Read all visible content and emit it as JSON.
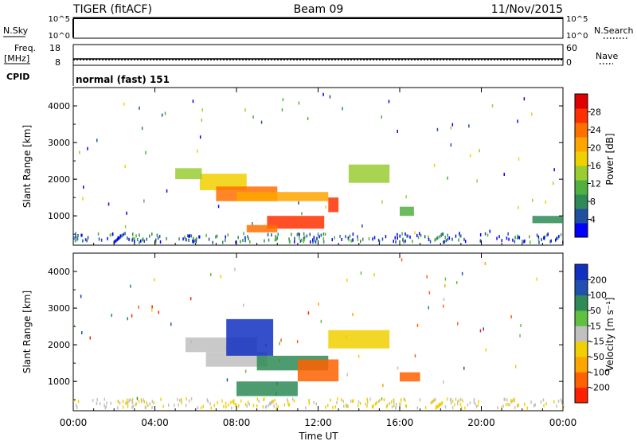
{
  "header": {
    "station": "TIGER (fitACF)",
    "beam": "Beam 09",
    "date": "11/Nov/2015"
  },
  "top_panels": {
    "nsky_label": "N.Sky",
    "nsky_ticks": [
      "10^5",
      "10^0"
    ],
    "nsearch_label": "N.Search",
    "nsearch_ticks": [
      "10^5",
      "10^0"
    ],
    "freq_label_1": "Freq.",
    "freq_label_2": "[MHz]",
    "freq_ticks": [
      "18",
      "8"
    ],
    "nave_label": "Nave",
    "nave_ticks": [
      "60",
      "0"
    ],
    "cpid_label": "CPID",
    "cpid_value": "normal (fast) 151"
  },
  "colors": {
    "power_scale": [
      "#0000ff",
      "#1f4fa0",
      "#2e8b57",
      "#50b040",
      "#9acd32",
      "#f0d000",
      "#ffa500",
      "#ff7000",
      "#ff3000",
      "#e00000"
    ],
    "velocity_scale": [
      "#1030c0",
      "#2050b0",
      "#2e8b57",
      "#60c040",
      "#c0c0c0",
      "#f0d000",
      "#ffa500",
      "#ff6000",
      "#ff2000"
    ]
  },
  "chart_data": [
    {
      "type": "heatmap",
      "name": "power",
      "ylabel": "Slant Range [km]",
      "ylim": [
        200,
        4500
      ],
      "xlim": [
        0,
        24
      ],
      "y_ticks": [
        "1000",
        "2000",
        "3000",
        "4000"
      ],
      "colorbar_label": "Power [dB]",
      "colorbar_ticks": [
        "4",
        "8",
        "12",
        "16",
        "20",
        "24",
        "28"
      ],
      "cells": [
        {
          "t0": 6.2,
          "t1": 8.5,
          "r0": 1700,
          "r1": 2150,
          "v": 16
        },
        {
          "t0": 7.0,
          "t1": 10.0,
          "r0": 1400,
          "r1": 1800,
          "v": 24
        },
        {
          "t0": 8.0,
          "t1": 12.5,
          "r0": 1400,
          "r1": 1650,
          "v": 22
        },
        {
          "t0": 9.5,
          "t1": 12.3,
          "r0": 650,
          "r1": 1000,
          "v": 28
        },
        {
          "t0": 8.5,
          "t1": 10.0,
          "r0": 550,
          "r1": 750,
          "v": 24
        },
        {
          "t0": 12.5,
          "t1": 13.0,
          "r0": 1100,
          "r1": 1500,
          "v": 26
        },
        {
          "t0": 13.5,
          "t1": 15.5,
          "r0": 1900,
          "r1": 2400,
          "v": 14
        },
        {
          "t0": 5.0,
          "t1": 6.3,
          "r0": 2000,
          "r1": 2300,
          "v": 14
        },
        {
          "t0": 16.0,
          "t1": 16.7,
          "r0": 1000,
          "r1": 1250,
          "v": 10
        },
        {
          "t0": 22.5,
          "t1": 24.0,
          "r0": 800,
          "r1": 1000,
          "v": 8
        }
      ]
    },
    {
      "type": "heatmap",
      "name": "velocity",
      "ylabel": "Slant Range [km]",
      "xlabel": "Time UT",
      "ylim": [
        200,
        4500
      ],
      "xlim": [
        0,
        24
      ],
      "y_ticks": [
        "1000",
        "2000",
        "3000",
        "4000"
      ],
      "x_ticks": [
        "00:00",
        "04:00",
        "08:00",
        "12:00",
        "16:00",
        "20:00",
        "00:00"
      ],
      "colorbar_label": "Velocity [m s⁻¹]",
      "colorbar_ticks": [
        "200",
        "100",
        "50",
        "15",
        "-15",
        "-50",
        "-100",
        "-200"
      ],
      "cells": [
        {
          "t0": 5.5,
          "t1": 9.0,
          "r0": 1800,
          "r1": 2200,
          "v": 0
        },
        {
          "t0": 6.5,
          "t1": 9.5,
          "r0": 1400,
          "r1": 1800,
          "v": 0
        },
        {
          "t0": 7.5,
          "t1": 9.8,
          "r0": 1700,
          "r1": 2700,
          "v": 150
        },
        {
          "t0": 9.0,
          "t1": 12.5,
          "r0": 1300,
          "r1": 1700,
          "v": 30
        },
        {
          "t0": 11.0,
          "t1": 13.0,
          "r0": 1000,
          "r1": 1600,
          "v": -80
        },
        {
          "t0": 8.0,
          "t1": 11.0,
          "r0": 600,
          "r1": 1000,
          "v": 40
        },
        {
          "t0": 12.5,
          "t1": 15.5,
          "r0": 1900,
          "r1": 2400,
          "v": -20
        },
        {
          "t0": 16.0,
          "t1": 17.0,
          "r0": 1000,
          "r1": 1250,
          "v": -100
        }
      ]
    }
  ]
}
